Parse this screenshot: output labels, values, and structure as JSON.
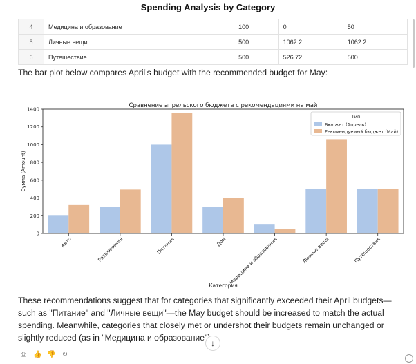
{
  "header": {
    "title": "Spending Analysis by Category"
  },
  "table": {
    "rows": [
      {
        "index": "4",
        "category": "Медицина и образование",
        "budget": "100",
        "actual": "0",
        "recommended": "50"
      },
      {
        "index": "5",
        "category": "Личные вещи",
        "budget": "500",
        "actual": "1062.2",
        "recommended": "1062.2"
      },
      {
        "index": "6",
        "category": "Путешествие",
        "budget": "500",
        "actual": "526.72",
        "recommended": "500"
      }
    ]
  },
  "intro_text": "The bar plot below compares April's budget with the recommended budget for May:",
  "chart_data": {
    "type": "bar",
    "title": "Сравнение апрельского бюджета с рекомендациями на май",
    "xlabel": "Категория",
    "ylabel": "Сумма (Amount)",
    "ylim": [
      0,
      1400
    ],
    "yticks": [
      "0",
      "200",
      "400",
      "600",
      "800",
      "1000",
      "1200",
      "1400"
    ],
    "categories": [
      "Авто",
      "Развлечения",
      "Питание",
      "Дом",
      "Медицина и образование",
      "Личные вещи",
      "Путешествие"
    ],
    "legend_title": "Тип",
    "legend_position": "top-right",
    "series": [
      {
        "name": "Бюджет (Апрель)",
        "color": "#aec7e8",
        "values": [
          200,
          300,
          1000,
          300,
          100,
          500,
          500
        ]
      },
      {
        "name": "Рекомендуемый бюджет (Май)",
        "color": "#e8b892",
        "values": [
          320,
          495,
          1355,
          400,
          50,
          1062.2,
          500
        ]
      }
    ]
  },
  "conclusion_text": "These recommendations suggest that for categories that significantly exceeded their April budgets—such as \"Питание\" and \"Личные вещи\"—the May budget should be increased to match the actual spending. Meanwhile, categories that closely met or undershot their budgets remain unchanged or slightly reduced (as in \"Медицина и образование\").",
  "icons": {
    "scroll_down": "arrow-down-icon",
    "copy": "copy-icon",
    "like": "thumbs-up-icon",
    "dislike": "thumbs-down-icon",
    "regenerate": "refresh-icon"
  }
}
